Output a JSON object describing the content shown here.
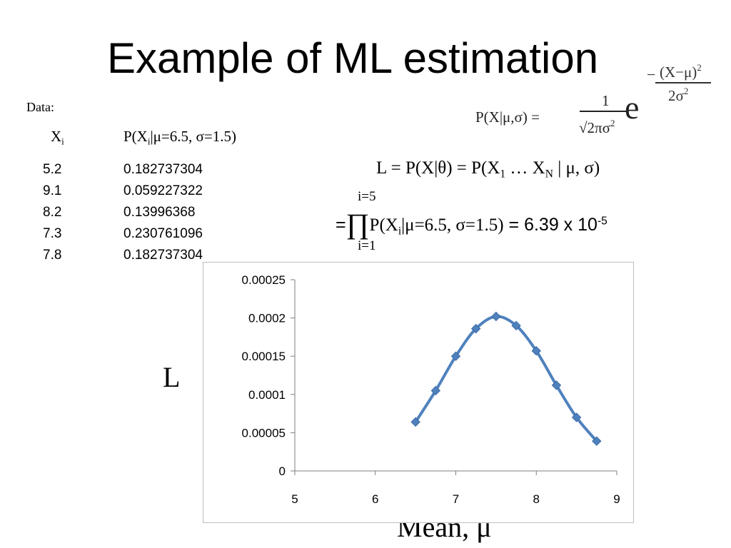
{
  "slide": {
    "title": "Example of ML estimation",
    "data_label": "Data:",
    "col_x_header_main": "X",
    "col_x_header_sub": "i",
    "col_p_header_pre": "P(X",
    "col_p_header_sub": "i",
    "col_p_header_post": "|μ=6.5, σ=1.5)",
    "table_rows": [
      {
        "x": "5.2",
        "p": "0.182737304"
      },
      {
        "x": "9.1",
        "p": "0.059227322"
      },
      {
        "x": "8.2",
        "p": "0.13996368"
      },
      {
        "x": "7.3",
        "p": "0.230761096"
      },
      {
        "x": "7.8",
        "p": "0.182737304"
      }
    ],
    "formula": {
      "lhs": "P(X|μ,σ)  =",
      "numerator": "1",
      "denominator": "√2πσ",
      "denominator_sup": "2",
      "e": "e",
      "exp_sign": "−",
      "exp_num": "(X−μ)",
      "exp_num_sup": "2",
      "exp_den": "2σ",
      "exp_den_sup": "2"
    },
    "likelihood": {
      "pre": "L = P(X|θ) = P(X",
      "sub1": "1",
      "mid": " … X",
      "subN": "N",
      "post": " | μ, σ)"
    },
    "product": {
      "equals": "=",
      "upper": "i=5",
      "symbol": "∏",
      "lower": "i=1",
      "expr_pre": "P(X",
      "expr_sub": "i",
      "expr_post": "|μ=6.5, σ=1.5)",
      "result_pre": " = 6.39 x 10",
      "result_sup": "-5"
    },
    "y_axis_title": "L",
    "x_axis_title": "Mean, μ"
  },
  "colors": {
    "series": "#4f81bd",
    "marker": "#4f81bd",
    "axis": "#7f7f7f",
    "chart_border": "#bfbfbf"
  },
  "chart_data": {
    "type": "line",
    "x": [
      6.5,
      6.75,
      7.0,
      7.25,
      7.5,
      7.75,
      8.0,
      8.25,
      8.5,
      8.75
    ],
    "series": [
      {
        "values": [
          6.4e-05,
          0.000105,
          0.00015,
          0.000186,
          0.000202,
          0.00019,
          0.000157,
          0.000112,
          7e-05,
          3.9e-05
        ]
      }
    ],
    "xlim": [
      5,
      9
    ],
    "ylim": [
      0,
      0.00025
    ],
    "x_ticks": [
      "5",
      "6",
      "7",
      "8",
      "9"
    ],
    "y_ticks": [
      "0",
      "0.00005",
      "0.0001",
      "0.00015",
      "0.0002",
      "0.00025"
    ],
    "xlabel": "Mean, μ",
    "ylabel": "L",
    "grid": false,
    "legend": "none"
  }
}
